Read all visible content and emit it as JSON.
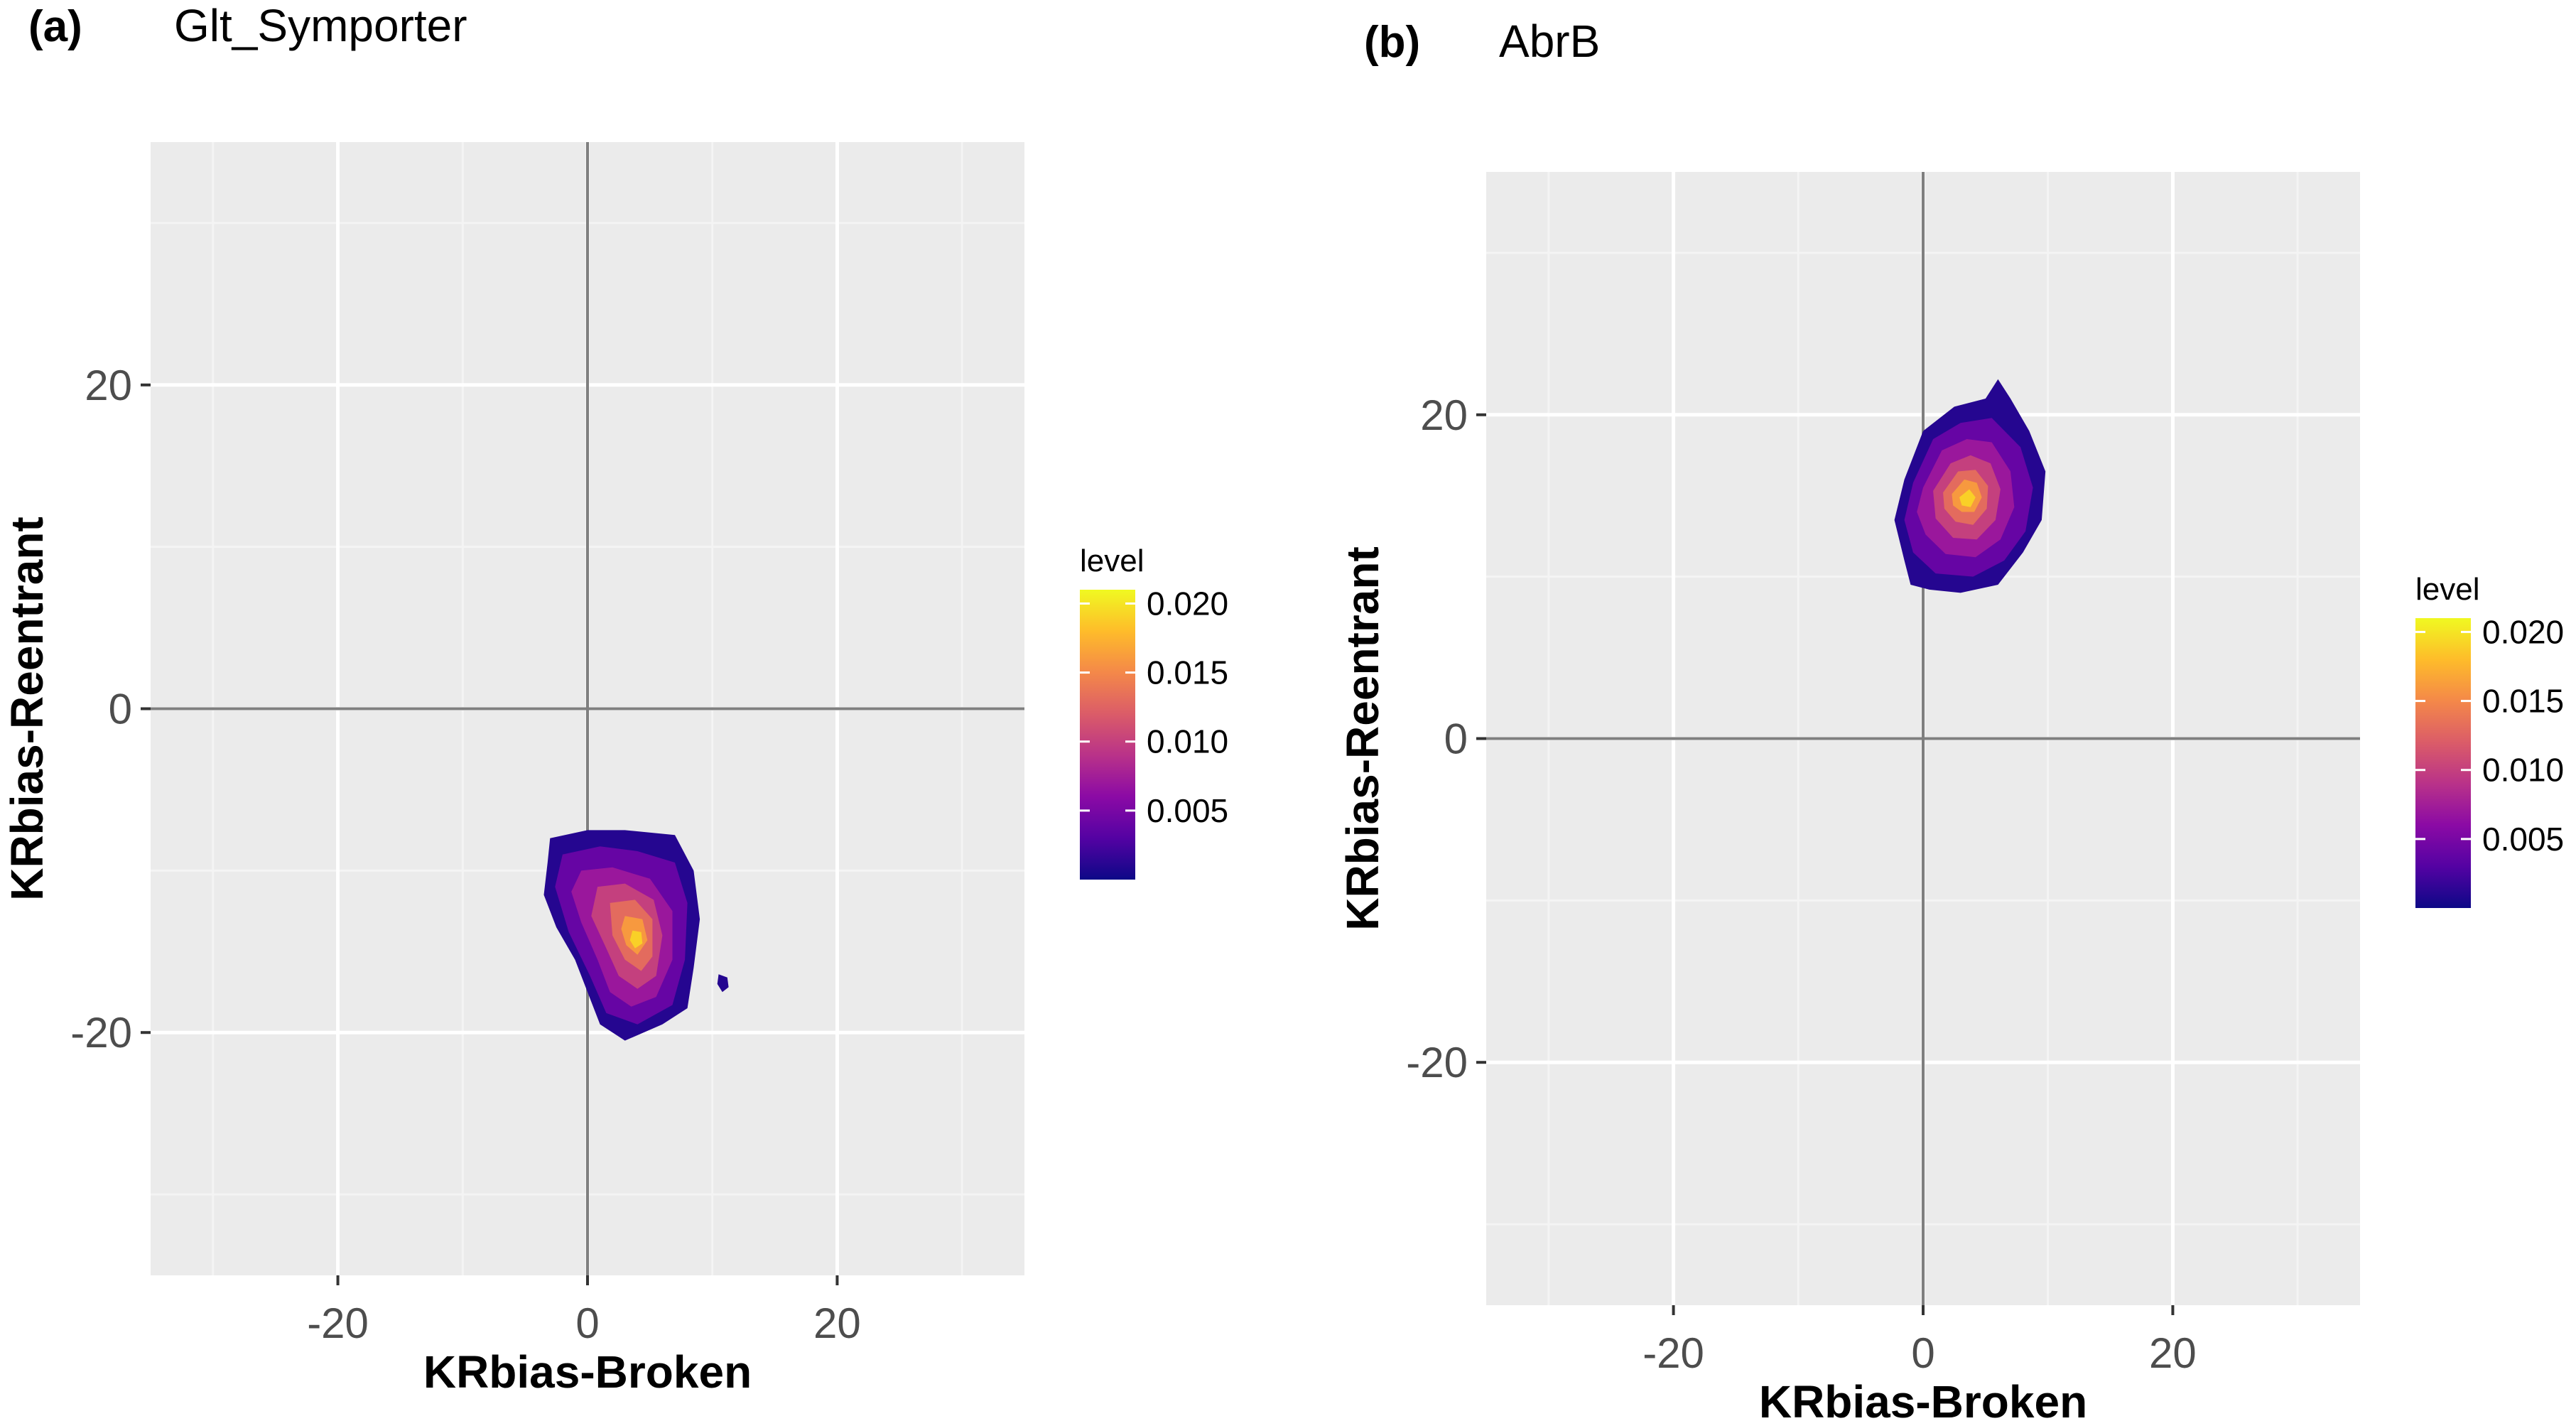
{
  "colors": {
    "panel_bg": "#EBEBEB",
    "grid_major": "#FFFFFF",
    "grid_minor": "#F4F4F4",
    "zero_line": "#7F7F7F",
    "tick_text": "#4D4D4D",
    "palette": [
      "#0D0887",
      "#5402A3",
      "#8B0AA5",
      "#B93289",
      "#DB5C68",
      "#F48849",
      "#FEBC2A",
      "#F0F921"
    ]
  },
  "chart_data": [
    {
      "type": "heatmap",
      "panel_label": "(a)",
      "title": "Glt_Symporter",
      "xlabel": "KRbias-Broken",
      "ylabel": "KRbias-Reentrant",
      "xlim": [
        -35,
        35
      ],
      "ylim": [
        -35,
        35
      ],
      "xticks": [
        -20,
        0,
        20
      ],
      "xtick_labels": [
        "-20",
        "0",
        "20"
      ],
      "yticks": [
        -20,
        0,
        20
      ],
      "ytick_labels": [
        "-20",
        "0",
        "20"
      ],
      "grid": true,
      "reference_lines": {
        "x": 0,
        "y": 0
      },
      "legend": {
        "title": "level",
        "placement": "right",
        "min": 0,
        "max": 0.021,
        "breaks": [
          0.005,
          0.01,
          0.015,
          0.02
        ],
        "labels": [
          "0.005",
          "0.010",
          "0.015",
          "0.020"
        ]
      },
      "density_contours": [
        {
          "level": 0.001,
          "points": [
            [
              -3,
              -8
            ],
            [
              0,
              -7.5
            ],
            [
              3,
              -7.5
            ],
            [
              7,
              -7.8
            ],
            [
              8.5,
              -10
            ],
            [
              9,
              -13
            ],
            [
              8.5,
              -16
            ],
            [
              8,
              -18.5
            ],
            [
              6,
              -19.5
            ],
            [
              3,
              -20.5
            ],
            [
              1,
              -19.5
            ],
            [
              0,
              -17.5
            ],
            [
              -1,
              -15.5
            ],
            [
              -2.5,
              -13.5
            ],
            [
              -3.5,
              -11.5
            ],
            [
              -3.2,
              -9.5
            ]
          ]
        },
        {
          "level": 0.001,
          "points": [
            [
              10.5,
              -16.4
            ],
            [
              11.2,
              -16.6
            ],
            [
              11.3,
              -17.2
            ],
            [
              10.8,
              -17.5
            ],
            [
              10.4,
              -17.0
            ]
          ]
        },
        {
          "level": 0.004,
          "points": [
            [
              -2,
              -9
            ],
            [
              1,
              -8.5
            ],
            [
              4,
              -8.8
            ],
            [
              7,
              -9.5
            ],
            [
              8,
              -12
            ],
            [
              7.8,
              -15.5
            ],
            [
              6.8,
              -18.3
            ],
            [
              4,
              -19.5
            ],
            [
              1.5,
              -18.8
            ],
            [
              0.2,
              -16.5
            ],
            [
              -1.5,
              -13.8
            ],
            [
              -2.6,
              -11
            ]
          ]
        },
        {
          "level": 0.007,
          "points": [
            [
              -0.5,
              -10
            ],
            [
              2,
              -9.8
            ],
            [
              5,
              -10.5
            ],
            [
              6.8,
              -12.5
            ],
            [
              6.8,
              -15.5
            ],
            [
              5.5,
              -17.8
            ],
            [
              3.5,
              -18.4
            ],
            [
              1.8,
              -17.5
            ],
            [
              0.8,
              -15.5
            ],
            [
              -0.5,
              -13.2
            ],
            [
              -1.3,
              -11.3
            ]
          ]
        },
        {
          "level": 0.01,
          "points": [
            [
              0.8,
              -11
            ],
            [
              3,
              -10.8
            ],
            [
              5.3,
              -11.8
            ],
            [
              6,
              -14
            ],
            [
              5.5,
              -16.5
            ],
            [
              4,
              -17.3
            ],
            [
              2.5,
              -16.5
            ],
            [
              1.5,
              -14.8
            ],
            [
              0.3,
              -12.8
            ]
          ]
        },
        {
          "level": 0.013,
          "points": [
            [
              1.8,
              -12
            ],
            [
              3.8,
              -11.8
            ],
            [
              5.2,
              -13
            ],
            [
              5.2,
              -15.3
            ],
            [
              4.3,
              -16.2
            ],
            [
              3,
              -15.5
            ],
            [
              2,
              -14
            ]
          ]
        },
        {
          "level": 0.016,
          "points": [
            [
              3,
              -12.8
            ],
            [
              4.4,
              -13
            ],
            [
              4.8,
              -14.3
            ],
            [
              4,
              -15.2
            ],
            [
              3.1,
              -14.6
            ],
            [
              2.7,
              -13.6
            ]
          ]
        },
        {
          "level": 0.019,
          "points": [
            [
              3.6,
              -13.7
            ],
            [
              4.3,
              -13.8
            ],
            [
              4.4,
              -14.5
            ],
            [
              3.8,
              -14.8
            ],
            [
              3.4,
              -14.3
            ]
          ]
        }
      ]
    },
    {
      "type": "heatmap",
      "panel_label": "(b)",
      "title": "AbrB",
      "xlabel": "KRbias-Broken",
      "ylabel": "KRbias-Reentrant",
      "xlim": [
        -35,
        35
      ],
      "ylim": [
        -35,
        35
      ],
      "xticks": [
        -20,
        0,
        20
      ],
      "xtick_labels": [
        "-20",
        "0",
        "20"
      ],
      "yticks": [
        -20,
        0,
        20
      ],
      "ytick_labels": [
        "-20",
        "0",
        "20"
      ],
      "grid": true,
      "reference_lines": {
        "x": 0,
        "y": 0
      },
      "legend": {
        "title": "level",
        "placement": "right",
        "min": 0,
        "max": 0.021,
        "breaks": [
          0.005,
          0.01,
          0.015,
          0.02
        ],
        "labels": [
          "0.005",
          "0.010",
          "0.015",
          "0.020"
        ]
      },
      "density_contours": [
        {
          "level": 0.001,
          "points": [
            [
              -1.5,
              16
            ],
            [
              0,
              19
            ],
            [
              2.5,
              20.5
            ],
            [
              5,
              21
            ],
            [
              6,
              22.2
            ],
            [
              7,
              21
            ],
            [
              8.5,
              19
            ],
            [
              9.8,
              16.5
            ],
            [
              9.5,
              13.5
            ],
            [
              8,
              11.5
            ],
            [
              6,
              9.5
            ],
            [
              3,
              9
            ],
            [
              0.5,
              9.2
            ],
            [
              -1,
              9.5
            ],
            [
              -1.5,
              11
            ],
            [
              -2.3,
              13.5
            ]
          ]
        },
        {
          "level": 0.004,
          "points": [
            [
              -0.8,
              15.8
            ],
            [
              0.8,
              18.5
            ],
            [
              3,
              19.5
            ],
            [
              5.5,
              19.8
            ],
            [
              7.8,
              18
            ],
            [
              8.8,
              15.5
            ],
            [
              8.2,
              12.8
            ],
            [
              6.5,
              11
            ],
            [
              4,
              10
            ],
            [
              1,
              10.2
            ],
            [
              -0.8,
              11.5
            ],
            [
              -1.5,
              13.5
            ]
          ]
        },
        {
          "level": 0.007,
          "points": [
            [
              0,
              15.5
            ],
            [
              1.5,
              17.8
            ],
            [
              3.5,
              18.5
            ],
            [
              5.5,
              18.3
            ],
            [
              7,
              16.5
            ],
            [
              7.3,
              14.3
            ],
            [
              6.2,
              12.3
            ],
            [
              4.2,
              11.2
            ],
            [
              1.8,
              11.4
            ],
            [
              0.2,
              12.6
            ],
            [
              -0.5,
              14
            ]
          ]
        },
        {
          "level": 0.01,
          "points": [
            [
              0.8,
              15.3
            ],
            [
              2.2,
              17
            ],
            [
              3.8,
              17.5
            ],
            [
              5.4,
              17
            ],
            [
              6.2,
              15.4
            ],
            [
              5.8,
              13.5
            ],
            [
              4.3,
              12.3
            ],
            [
              2.4,
              12.4
            ],
            [
              1,
              13.6
            ]
          ]
        },
        {
          "level": 0.013,
          "points": [
            [
              1.6,
              15.2
            ],
            [
              2.8,
              16.5
            ],
            [
              4.2,
              16.6
            ],
            [
              5.2,
              15.6
            ],
            [
              5.1,
              14.2
            ],
            [
              4,
              13.2
            ],
            [
              2.6,
              13.4
            ],
            [
              1.7,
              14.2
            ]
          ]
        },
        {
          "level": 0.016,
          "points": [
            [
              2.3,
              15.1
            ],
            [
              3.3,
              16
            ],
            [
              4.3,
              15.8
            ],
            [
              4.7,
              14.9
            ],
            [
              4.1,
              14
            ],
            [
              3.1,
              14
            ],
            [
              2.4,
              14.4
            ]
          ]
        },
        {
          "level": 0.019,
          "points": [
            [
              2.9,
              14.9
            ],
            [
              3.7,
              15.4
            ],
            [
              4.2,
              14.9
            ],
            [
              3.8,
              14.3
            ],
            [
              3.1,
              14.4
            ]
          ]
        }
      ]
    }
  ]
}
